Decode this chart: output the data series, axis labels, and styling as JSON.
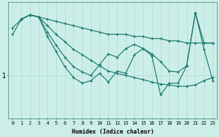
{
  "xlabel": "Humidex (Indice chaleur)",
  "background_color": "#cceee8",
  "line_color": "#1a7a6e",
  "grid_color": "#b8ddd8",
  "x_ticks": [
    0,
    1,
    2,
    3,
    4,
    5,
    6,
    7,
    8,
    9,
    10,
    11,
    12,
    13,
    14,
    15,
    16,
    17,
    18,
    19,
    20,
    21,
    22,
    23
  ],
  "series": [
    {
      "x": [
        0,
        1,
        2,
        3,
        4,
        5,
        6,
        7,
        8,
        9,
        10,
        11,
        12,
        13,
        14,
        15,
        16,
        17,
        18,
        19,
        20,
        21,
        22,
        23
      ],
      "y": [
        2.1,
        2.3,
        2.4,
        2.35,
        2.3,
        2.25,
        2.2,
        2.15,
        2.1,
        2.05,
        2.0,
        1.95,
        1.95,
        1.95,
        1.9,
        1.9,
        1.85,
        1.85,
        1.8,
        1.8,
        1.75,
        1.75,
        1.75,
        1.75
      ]
    },
    {
      "x": [
        0,
        1,
        2,
        3,
        4,
        5,
        6,
        7,
        8,
        9,
        10,
        11,
        12,
        13,
        14,
        15,
        16,
        17,
        18,
        19,
        20,
        21,
        22,
        23
      ],
      "y": [
        1.95,
        2.3,
        2.4,
        2.35,
        2.15,
        1.95,
        1.78,
        1.6,
        1.48,
        1.35,
        1.22,
        1.1,
        1.05,
        1.0,
        0.95,
        0.9,
        0.85,
        0.8,
        0.78,
        0.75,
        0.75,
        0.78,
        0.88,
        0.95
      ]
    },
    {
      "x": [
        1,
        2,
        3,
        4,
        5,
        6,
        7,
        8,
        9,
        10,
        11,
        12,
        13,
        14,
        15,
        16,
        17,
        18,
        19,
        20,
        21,
        22,
        23
      ],
      "y": [
        2.3,
        2.4,
        2.35,
        2.0,
        1.7,
        1.42,
        1.2,
        1.08,
        1.0,
        1.25,
        1.5,
        1.42,
        1.62,
        1.72,
        1.62,
        1.5,
        1.32,
        1.1,
        1.08,
        1.22,
        2.45,
        1.75,
        1.75
      ]
    },
    {
      "x": [
        1,
        2,
        3,
        4,
        5,
        6,
        7,
        8,
        9,
        10,
        11,
        12,
        13,
        14,
        15,
        16,
        17,
        18,
        19,
        20,
        21,
        22,
        23
      ],
      "y": [
        2.3,
        2.4,
        2.35,
        1.9,
        1.55,
        1.2,
        0.95,
        0.82,
        0.88,
        1.05,
        0.85,
        1.1,
        1.05,
        1.48,
        1.62,
        1.45,
        0.55,
        0.82,
        0.82,
        1.22,
        2.45,
        1.6,
        0.88
      ]
    }
  ],
  "ylim_min": 0.0,
  "ylim_max": 2.7,
  "ytick_val": 1.0,
  "ytick_label": "1",
  "figsize": [
    3.2,
    2.0
  ],
  "dpi": 100
}
